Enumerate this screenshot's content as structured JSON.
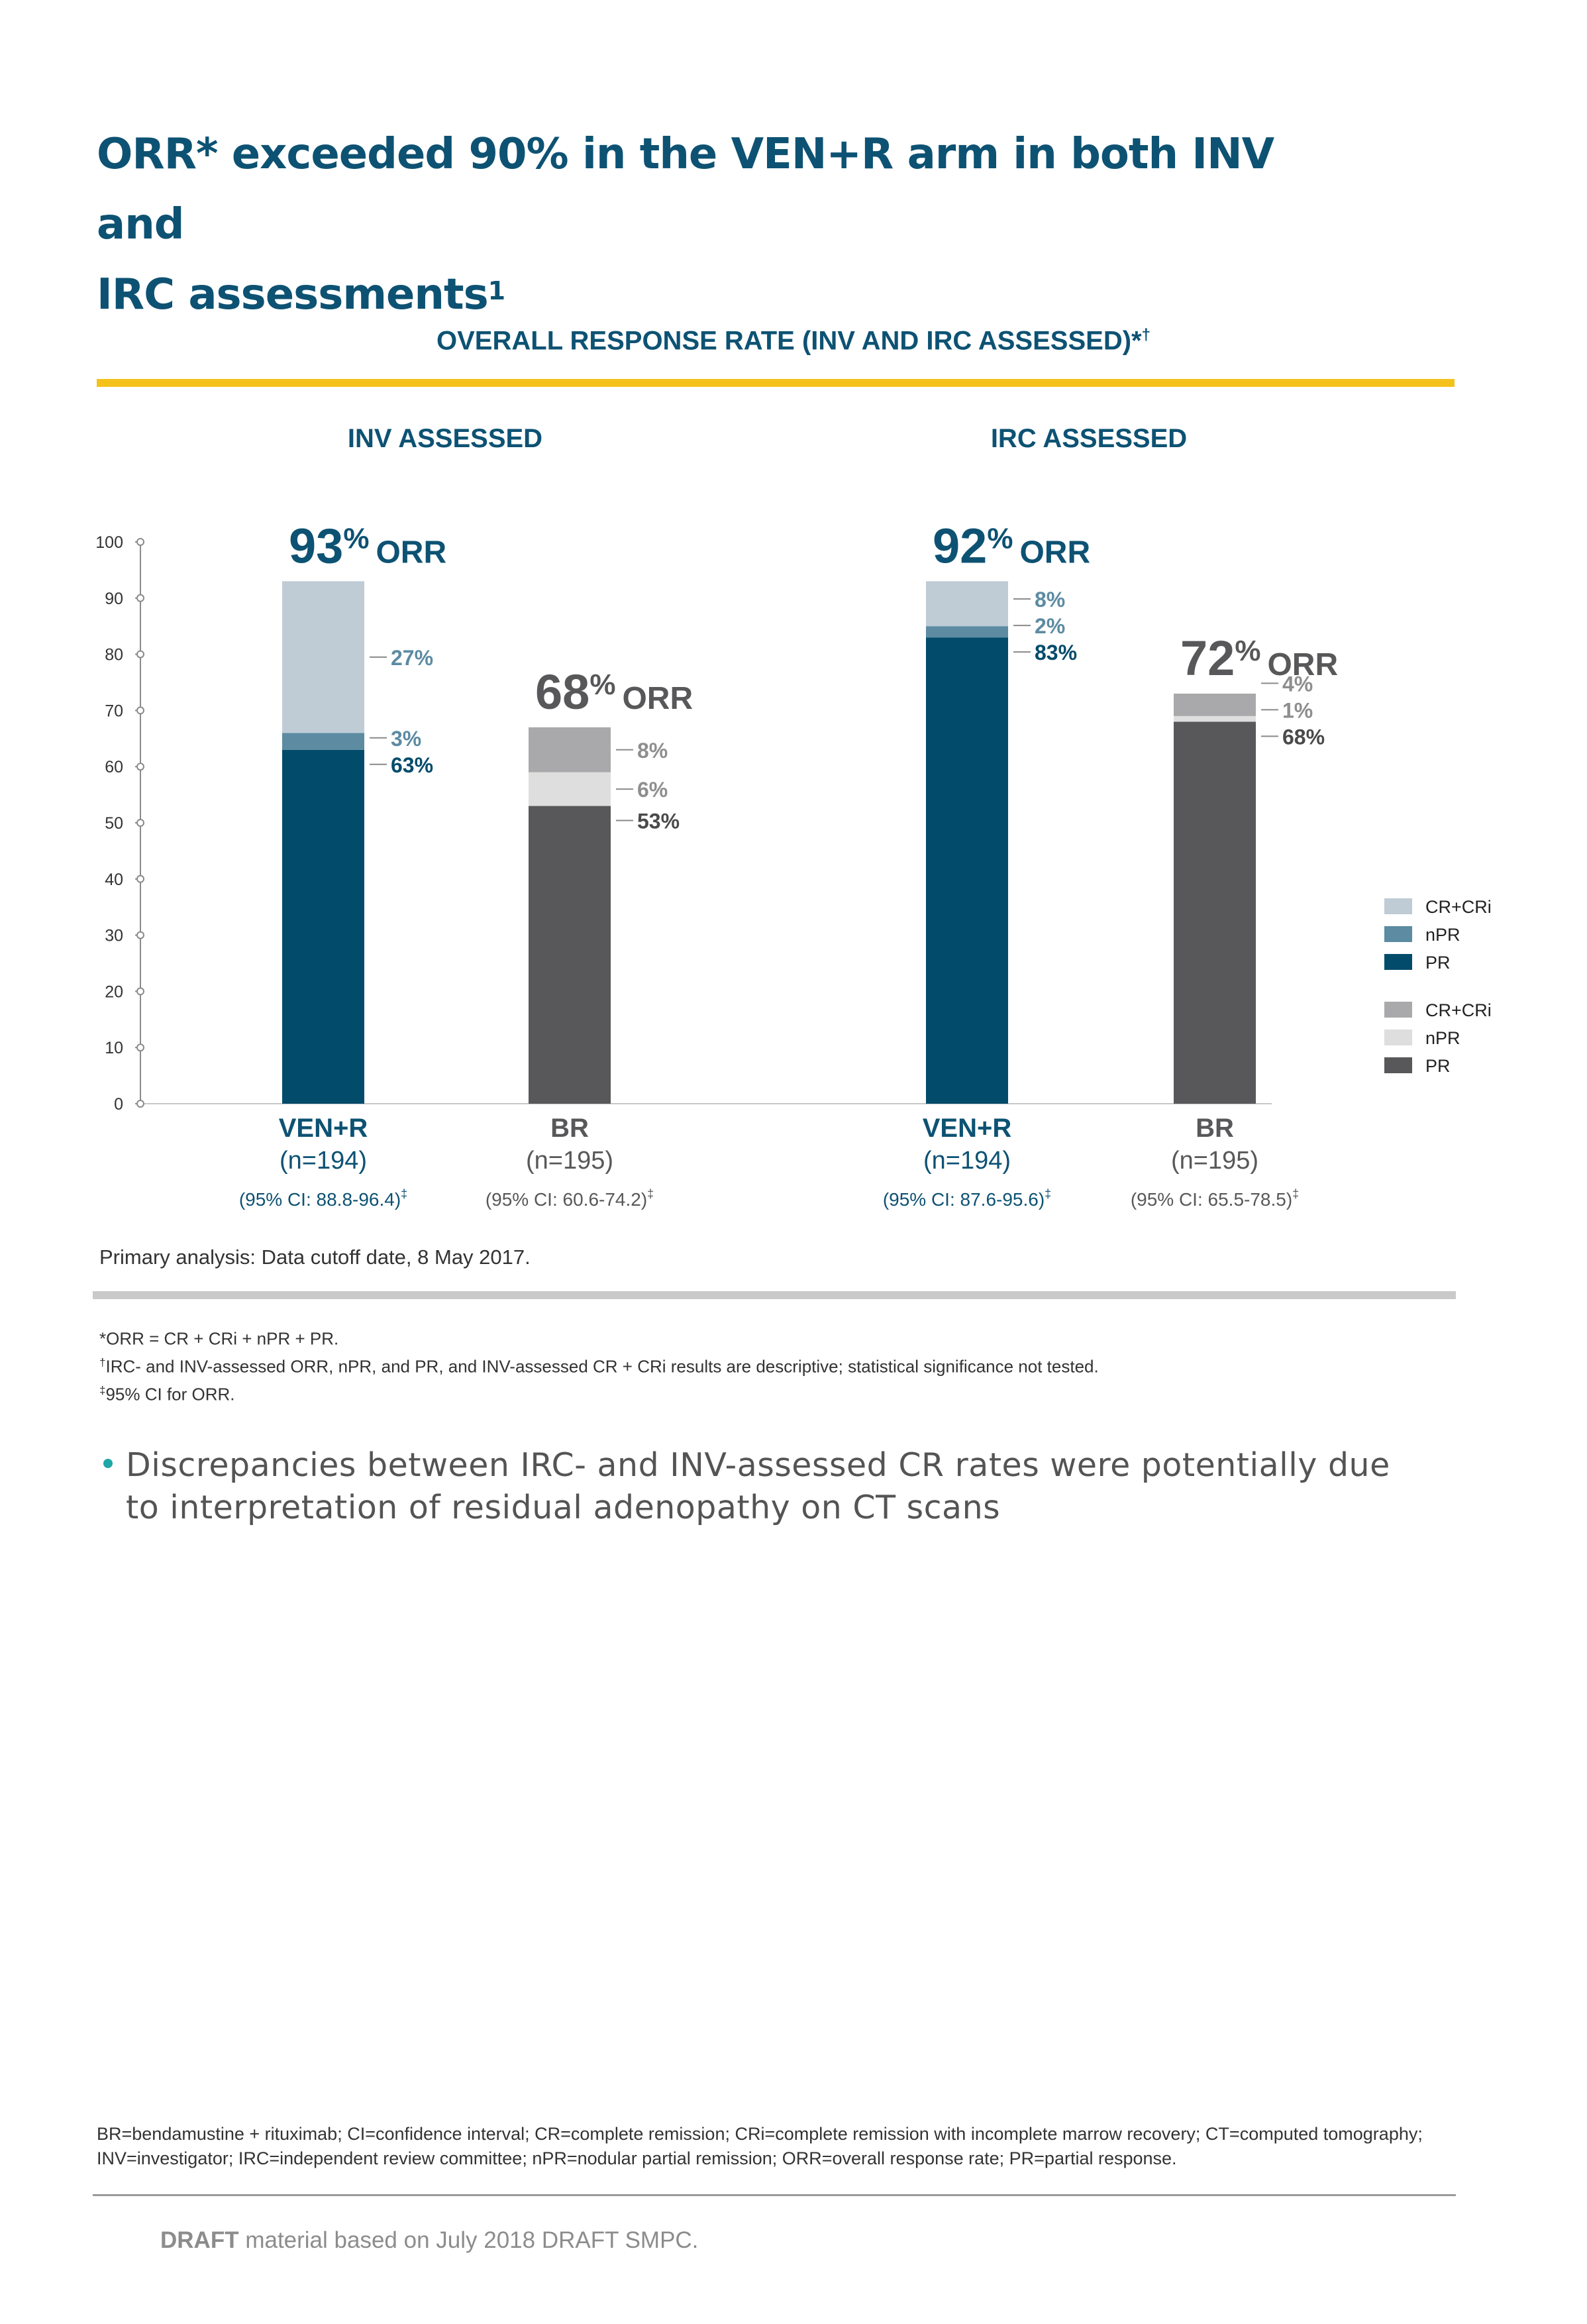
{
  "title": {
    "line1": "ORR* exceeded 90% in the VEN+R arm in both INV and",
    "line2": "IRC assessments",
    "sup": "1"
  },
  "chart_header": {
    "text": "OVERALL RESPONSE RATE (INV AND IRC ASSESSED)*",
    "sup": "†"
  },
  "panels": [
    {
      "title": "INV ASSESSED"
    },
    {
      "title": "IRC ASSESSED"
    }
  ],
  "chart_data": {
    "type": "bar",
    "stacked": true,
    "ylim": [
      0,
      100
    ],
    "yticks": [
      0,
      10,
      20,
      30,
      40,
      50,
      60,
      70,
      80,
      90,
      100
    ],
    "groups": [
      {
        "panel": "INV ASSESSED",
        "bars": [
          {
            "label": "VEN+R",
            "n": "(n=194)",
            "ci": "(95% CI: 88.8-96.4)",
            "ci_sup": "‡",
            "orr": "93",
            "orr_suffix": "ORR",
            "scheme": "blue",
            "segments": [
              {
                "name": "PR",
                "value": 63,
                "label": "63%"
              },
              {
                "name": "nPR",
                "value": 3,
                "label": "3%"
              },
              {
                "name": "CR+CRi",
                "value": 27,
                "label": "27%"
              }
            ]
          },
          {
            "label": "BR",
            "n": "(n=195)",
            "ci": "(95% CI: 60.6-74.2)",
            "ci_sup": "‡",
            "orr": "68",
            "orr_suffix": "ORR",
            "scheme": "gray",
            "segments": [
              {
                "name": "PR",
                "value": 53,
                "label": "53%"
              },
              {
                "name": "nPR",
                "value": 6,
                "label": "6%"
              },
              {
                "name": "CR+CRi",
                "value": 8,
                "label": "8%"
              }
            ]
          }
        ]
      },
      {
        "panel": "IRC ASSESSED",
        "bars": [
          {
            "label": "VEN+R",
            "n": "(n=194)",
            "ci": "(95% CI: 87.6-95.6)",
            "ci_sup": "‡",
            "orr": "92",
            "orr_suffix": "ORR",
            "scheme": "blue",
            "segments": [
              {
                "name": "PR",
                "value": 83,
                "label": "83%"
              },
              {
                "name": "nPR",
                "value": 2,
                "label": "2%"
              },
              {
                "name": "CR+CRi",
                "value": 8,
                "label": "8%"
              }
            ]
          },
          {
            "label": "BR",
            "n": "(n=195)",
            "ci": "(95% CI: 65.5-78.5)",
            "ci_sup": "‡",
            "orr": "72",
            "orr_suffix": "ORR",
            "scheme": "gray",
            "segments": [
              {
                "name": "PR",
                "value": 68,
                "label": "68%"
              },
              {
                "name": "nPR",
                "value": 1,
                "label": "1%"
              },
              {
                "name": "CR+CRi",
                "value": 4,
                "label": "4%"
              }
            ]
          }
        ]
      }
    ],
    "legend": {
      "placement": "right",
      "blue": [
        {
          "name": "CR+CRi",
          "color": "#bfccd6"
        },
        {
          "name": "nPR",
          "color": "#5c8ba2"
        },
        {
          "name": "PR",
          "color": "#024b6b"
        }
      ],
      "gray": [
        {
          "name": "CR+CRi",
          "color": "#a9a9ab"
        },
        {
          "name": "nPR",
          "color": "#dedede"
        },
        {
          "name": "PR",
          "color": "#58585a"
        }
      ]
    }
  },
  "colors": {
    "blue": {
      "PR": "#024b6b",
      "nPR": "#5c8ba2",
      "CR+CRi": "#bfccd6",
      "label_dark": "#024b6b",
      "label_light": "#5c8ba2",
      "orr": "#0d5273"
    },
    "gray": {
      "PR": "#58585a",
      "nPR": "#dedede",
      "CR+CRi": "#a9a9ab",
      "label_dark": "#4a4a4a",
      "label_light": "#8e8e8e",
      "orr": "#58585a"
    },
    "accent": "#f4c21b"
  },
  "cutoff_note": "Primary analysis: Data cutoff date, 8 May 2017.",
  "footnotes": [
    {
      "sup": "",
      "text": "*ORR = CR + CRi + nPR + PR."
    },
    {
      "sup": "†",
      "text": "IRC- and INV-assessed ORR, nPR, and PR, and INV-assessed CR + CRi results are descriptive; statistical significance not tested."
    },
    {
      "sup": "‡",
      "text": "95% CI for ORR."
    }
  ],
  "bullet": "Discrepancies between IRC- and INV-assessed CR rates were potentially due to interpretation of residual adenopathy on CT scans",
  "abbreviations": "BR=bendamustine + rituximab; CI=confidence interval; CR=complete remission; CRi=complete remission with incomplete marrow recovery; CT=computed tomography; INV=investigator; IRC=independent review committee; nPR=nodular partial remission; ORR=overall response rate; PR=partial response.",
  "draft": {
    "bold": "DRAFT",
    "rest": " material based on July 2018 DRAFT SMPC."
  }
}
